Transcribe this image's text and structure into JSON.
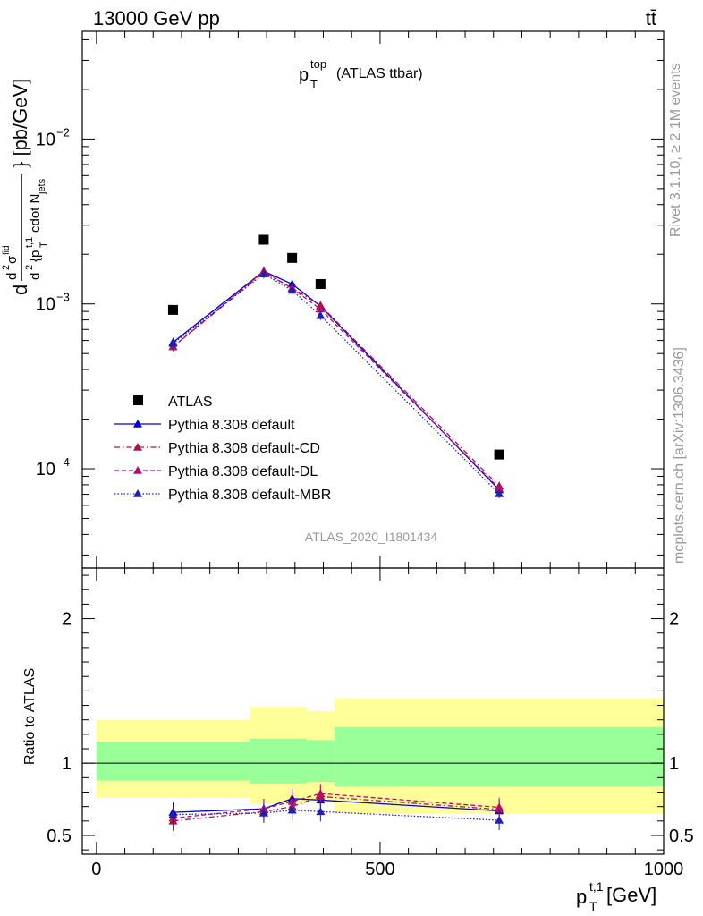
{
  "header": {
    "left": "13000 GeV pp",
    "right": "tt̄"
  },
  "side_labels": {
    "rivet": "Rivet 3.1.10, ≥ 2.1M events",
    "mcplots": "mcplots.cern.ch [arXiv:1306.3436]"
  },
  "watermark": "ATLAS_2020_I1801434",
  "chart_data": [
    {
      "type": "scatter",
      "panel": "main",
      "title": "p_T^top (ATLAS ttbar)",
      "ylabel": "d²σ^fid / d²{p_T^t,1 cdot N_jets} [pb/GeV]",
      "yscale": "log",
      "xlim": [
        -25,
        1000
      ],
      "ylim": [
        2.5e-05,
        0.045
      ],
      "yticklabels": [
        "10^-4",
        "10^-3",
        "10^-2"
      ],
      "x": [
        135,
        295,
        345,
        395,
        710
      ],
      "xerr_bins": [
        [
          0,
          270
        ],
        [
          270,
          320
        ],
        [
          320,
          370
        ],
        [
          370,
          420
        ],
        [
          420,
          1000
        ]
      ],
      "series": [
        {
          "name": "ATLAS",
          "style": "data",
          "color": "#000000",
          "values": [
            0.00092,
            0.00245,
            0.0019,
            0.00132,
            0.000122
          ]
        },
        {
          "name": "Pythia 8.308 default",
          "style": "solid",
          "color": "#0000cc",
          "values": [
            0.000585,
            0.00158,
            0.00132,
            0.00097,
            7.45e-05
          ]
        },
        {
          "name": "Pythia 8.308 default-CD",
          "style": "dashdot",
          "color": "#b0104a",
          "values": [
            0.00055,
            0.00155,
            0.00125,
            0.00098,
            7.85e-05
          ]
        },
        {
          "name": "Pythia 8.308 default-DL",
          "style": "dashed",
          "color": "#b0106a",
          "values": [
            0.00055,
            0.00158,
            0.00124,
            0.00093,
            7.6e-05
          ]
        },
        {
          "name": "Pythia 8.308 default-MBR",
          "style": "dotted",
          "color": "#2020b0",
          "values": [
            0.000575,
            0.00152,
            0.00121,
            0.00085,
            7.05e-05
          ]
        }
      ]
    },
    {
      "type": "line",
      "panel": "ratio",
      "ylabel": "Ratio to ATLAS",
      "xlabel": "p_T^t,1 [GeV]",
      "xlim": [
        -25,
        1000
      ],
      "ylim": [
        0.37,
        2.35
      ],
      "xticklabels": [
        "0",
        "500",
        "1000"
      ],
      "yticklabels": [
        "0.5",
        "1",
        "2"
      ],
      "bands": {
        "green": {
          "color": "#99ff99",
          "bins": [
            [
              0,
              270,
              0.88,
              1.15
            ],
            [
              270,
              370,
              0.86,
              1.17
            ],
            [
              370,
              420,
              0.87,
              1.16
            ],
            [
              420,
              1000,
              0.84,
              1.25
            ]
          ]
        },
        "yellow": {
          "color": "#ffff99",
          "bins": [
            [
              0,
              270,
              0.76,
              1.3
            ],
            [
              270,
              370,
              0.72,
              1.39
            ],
            [
              370,
              420,
              0.73,
              1.36
            ],
            [
              420,
              1000,
              0.65,
              1.45
            ]
          ]
        }
      },
      "x": [
        135,
        295,
        345,
        395,
        710
      ],
      "series": [
        {
          "name": "Pythia 8.308 default",
          "style": "solid",
          "color": "#0000cc",
          "values": [
            0.66,
            0.685,
            0.755,
            0.745,
            0.67
          ]
        },
        {
          "name": "Pythia 8.308 default-CD",
          "style": "dashdot",
          "color": "#b0104a",
          "values": [
            0.6,
            0.665,
            0.7,
            0.77,
            0.68
          ]
        },
        {
          "name": "Pythia 8.308 default-DL",
          "style": "dashed",
          "color": "#b0106a",
          "values": [
            0.62,
            0.685,
            0.735,
            0.79,
            0.695
          ]
        },
        {
          "name": "Pythia 8.308 default-MBR",
          "style": "dotted",
          "color": "#2020b0",
          "values": [
            0.645,
            0.655,
            0.675,
            0.665,
            0.605
          ]
        }
      ]
    }
  ]
}
